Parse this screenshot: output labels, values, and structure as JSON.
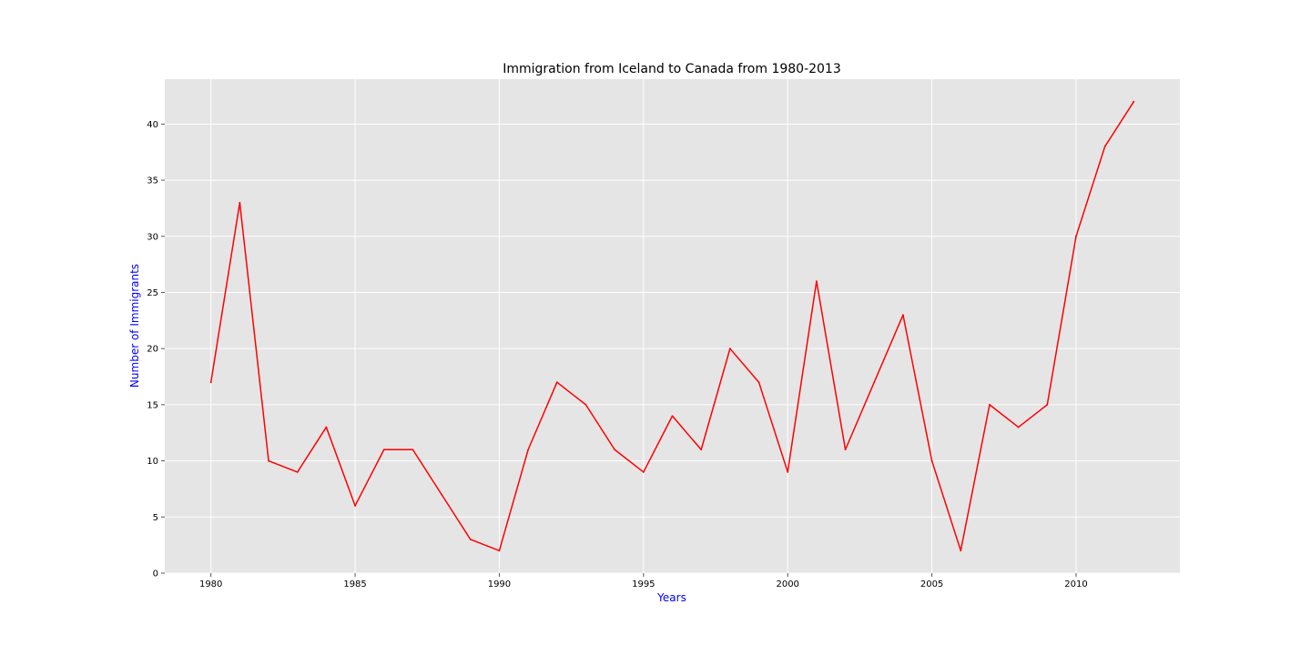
{
  "chart_data": {
    "type": "line",
    "title": "Immigration from Iceland to Canada from 1980-2013",
    "xlabel": "Years",
    "ylabel": "Number of Immigrants",
    "xlim": [
      1978.4,
      2013.6
    ],
    "ylim": [
      0,
      44
    ],
    "x_ticks": [
      1980,
      1985,
      1990,
      1995,
      2000,
      2005,
      2010
    ],
    "y_ticks": [
      0,
      5,
      10,
      15,
      20,
      25,
      30,
      35,
      40
    ],
    "grid": true,
    "legend": "none",
    "colors": {
      "background": "#ffffff",
      "plot_background": "#e5e5e5",
      "grid": "#ffffff",
      "line": "#ff0000",
      "axis_label": "#0000ff",
      "title": "#000000"
    },
    "x": [
      1980,
      1981,
      1982,
      1983,
      1984,
      1985,
      1986,
      1987,
      1988,
      1989,
      1990,
      1991,
      1992,
      1993,
      1994,
      1995,
      1996,
      1997,
      1998,
      1999,
      2000,
      2001,
      2002,
      2003,
      2004,
      2005,
      2006,
      2007,
      2008,
      2009,
      2010,
      2011,
      2012
    ],
    "series": [
      {
        "values": [
          17,
          33,
          10,
          9,
          13,
          6,
          11,
          11,
          7,
          3,
          2,
          11,
          17,
          15,
          11,
          9,
          14,
          11,
          20,
          17,
          9,
          26,
          11,
          17,
          23,
          10,
          2,
          15,
          13,
          15,
          30,
          38,
          42
        ]
      }
    ]
  }
}
